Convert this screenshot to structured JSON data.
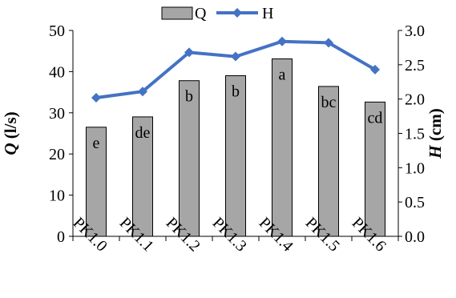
{
  "chart_data": {
    "type": "bar",
    "categories": [
      "PK1.0",
      "PK1.1",
      "PK1.2",
      "PK1.3",
      "PK1.4",
      "PK1.5",
      "PK1.6"
    ],
    "series": [
      {
        "name": "Q",
        "kind": "bar",
        "axis": "left",
        "values": [
          26.5,
          29.0,
          37.8,
          39.0,
          43.1,
          36.4,
          32.6
        ],
        "labels": [
          "e",
          "de",
          "b",
          "b",
          "a",
          "bc",
          "cd"
        ],
        "color": "#a6a6a6"
      },
      {
        "name": "H",
        "kind": "line",
        "axis": "right",
        "values": [
          2.02,
          2.11,
          2.68,
          2.62,
          2.84,
          2.82,
          2.43
        ],
        "color": "#4472c4",
        "marker": "diamond"
      }
    ],
    "ylabel": "Q (l/s)",
    "ylabel_parts": [
      {
        "text": "Q",
        "italic": true
      },
      {
        "text": " (l/s)",
        "italic": false
      }
    ],
    "ylim": [
      0,
      50
    ],
    "yticks": [
      0,
      10,
      20,
      30,
      40,
      50
    ],
    "ytick_labels": [
      "0",
      "10",
      "20",
      "30",
      "40",
      "50"
    ],
    "y2label": "H (cm)",
    "y2label_parts": [
      {
        "text": "H",
        "italic": true
      },
      {
        "text": " (cm)",
        "italic": false
      }
    ],
    "y2lim": [
      0,
      3.0
    ],
    "y2ticks": [
      0,
      0.5,
      1.0,
      1.5,
      2.0,
      2.5,
      3.0
    ],
    "y2tick_labels": [
      "0.0",
      "0.5",
      "1.0",
      "1.5",
      "2.0",
      "2.5",
      "3.0"
    ],
    "grid": false,
    "legend_position": "top"
  }
}
